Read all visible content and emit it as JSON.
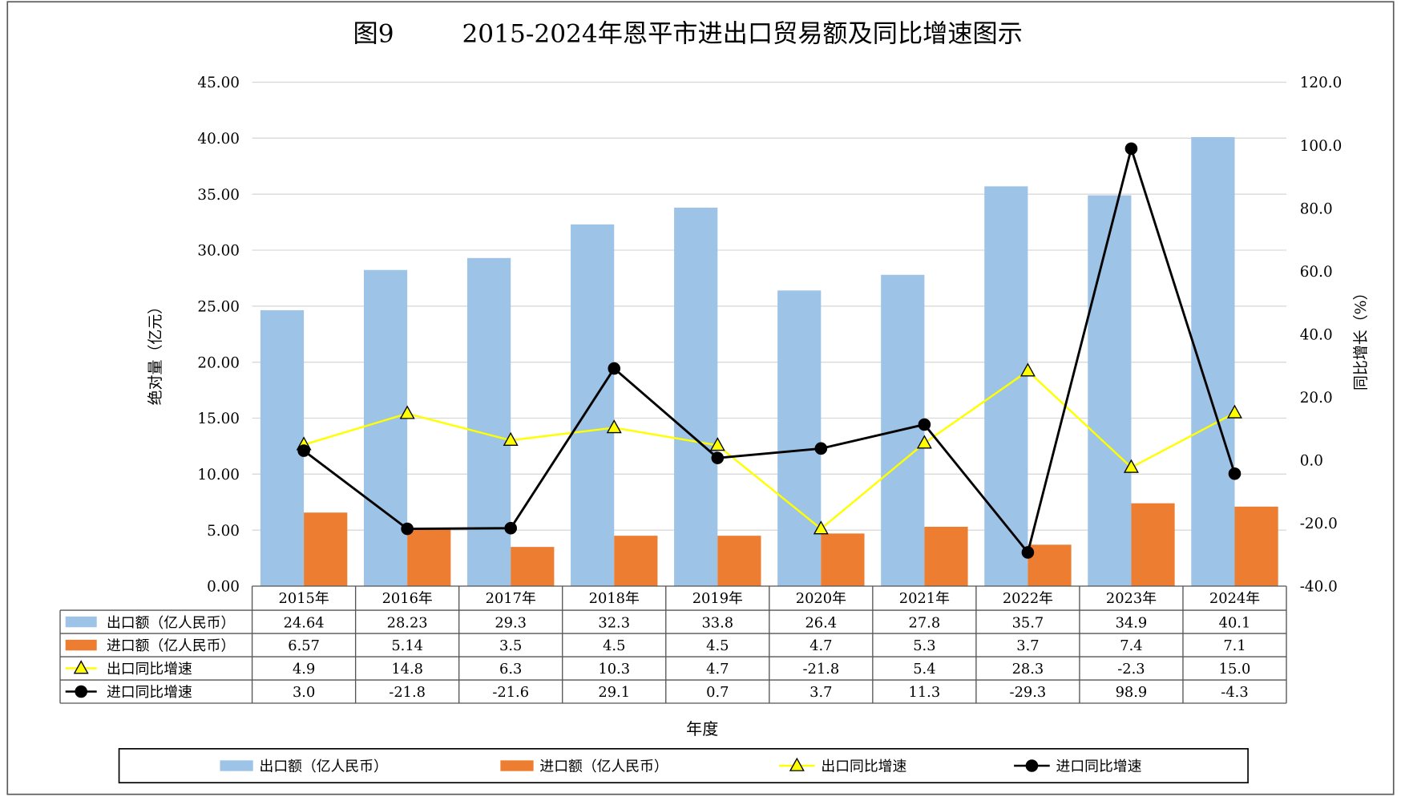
{
  "chart_data": {
    "type": "bar",
    "figure_label": "图9",
    "title": "2015-2024年恩平市进出口贸易额及同比增速图示",
    "xlabel": "年度",
    "ylabel": "绝对量（亿元）",
    "y2label": "同比增长（%）",
    "categories": [
      "2015年",
      "2016年",
      "2017年",
      "2018年",
      "2019年",
      "2020年",
      "2021年",
      "2022年",
      "2023年",
      "2024年"
    ],
    "ylim": [
      0,
      45
    ],
    "y2lim": [
      -40,
      120
    ],
    "yticks": [
      "0.00",
      "5.00",
      "10.00",
      "15.00",
      "20.00",
      "25.00",
      "30.00",
      "35.00",
      "40.00",
      "45.00"
    ],
    "y2ticks": [
      "-40.0",
      "-20.0",
      "0.0",
      "20.0",
      "40.0",
      "60.0",
      "80.0",
      "100.0",
      "120.0"
    ],
    "grid": true,
    "data_table": true,
    "legend_position": "bottom",
    "series": [
      {
        "name": "出口额（亿人民币）",
        "type": "bar",
        "axis": "left",
        "color": "#9dc3e6",
        "values": [
          24.64,
          28.23,
          29.3,
          32.3,
          33.8,
          26.4,
          27.8,
          35.7,
          34.9,
          40.1
        ],
        "labels": [
          "24.64",
          "28.23",
          "29.3",
          "32.3",
          "33.8",
          "26.4",
          "27.8",
          "35.7",
          "34.9",
          "40.1"
        ]
      },
      {
        "name": "进口额（亿人民币）",
        "type": "bar",
        "axis": "left",
        "color": "#ed7d31",
        "values": [
          6.57,
          5.14,
          3.5,
          4.5,
          4.5,
          4.7,
          5.3,
          3.7,
          7.4,
          7.1
        ],
        "labels": [
          "6.57",
          "5.14",
          "3.5",
          "4.5",
          "4.5",
          "4.7",
          "5.3",
          "3.7",
          "7.4",
          "7.1"
        ]
      },
      {
        "name": "出口同比增速",
        "type": "line",
        "axis": "right",
        "color": "#ffff00",
        "marker": "triangle",
        "values": [
          4.9,
          14.8,
          6.3,
          10.3,
          4.7,
          -21.8,
          5.4,
          28.3,
          -2.3,
          15.0
        ],
        "labels": [
          "4.9",
          "14.8",
          "6.3",
          "10.3",
          "4.7",
          "-21.8",
          "5.4",
          "28.3",
          "-2.3",
          "15.0"
        ]
      },
      {
        "name": "进口同比增速",
        "type": "line",
        "axis": "right",
        "color": "#000000",
        "marker": "circle",
        "values": [
          3.0,
          -21.8,
          -21.6,
          29.1,
          0.7,
          3.7,
          11.3,
          -29.3,
          98.9,
          -4.3
        ],
        "labels": [
          "3.0",
          "-21.8",
          "-21.6",
          "29.1",
          "0.7",
          "3.7",
          "11.3",
          "-29.3",
          "98.9",
          "-4.3"
        ]
      }
    ]
  }
}
